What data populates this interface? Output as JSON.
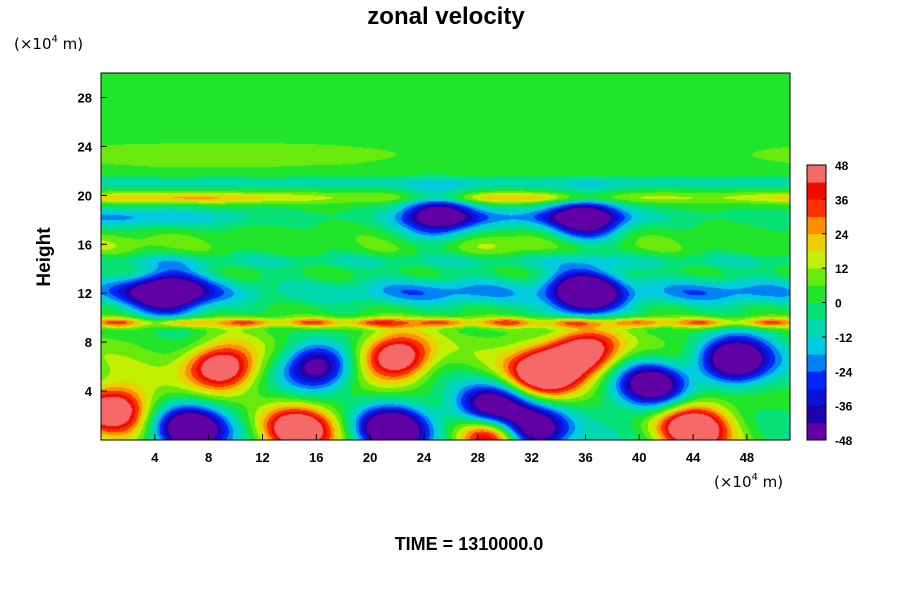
{
  "chart_data": {
    "type": "heatmap",
    "title": "zonal velocity",
    "ylabel": "Height",
    "y_unit": {
      "prefix": "(×10",
      "exp": "4",
      "suffix": " m)"
    },
    "x_unit": {
      "prefix": "(×10",
      "exp": "4",
      "suffix": " m)"
    },
    "footer": "TIME = 1310000.0",
    "xlim": [
      0,
      51.2
    ],
    "ylim": [
      0,
      30
    ],
    "x_ticks": [
      4,
      8,
      12,
      16,
      20,
      24,
      28,
      32,
      36,
      40,
      44,
      48
    ],
    "y_ticks": [
      4,
      8,
      12,
      16,
      20,
      24,
      28
    ],
    "colorbar": {
      "range": [
        -48,
        48
      ],
      "levels": [
        -48,
        -42,
        -36,
        -30,
        -24,
        -18,
        -12,
        -6,
        0,
        6,
        12,
        18,
        24,
        30,
        36,
        42,
        48
      ],
      "tick_labels": [
        48,
        36,
        24,
        12,
        0,
        -12,
        -24,
        -36,
        -48
      ]
    },
    "features": [
      {
        "x": 9,
        "y": 6,
        "value": 48
      },
      {
        "x": 22,
        "y": 6.8,
        "value": 48
      },
      {
        "x": 33,
        "y": 5.5,
        "value": 48
      },
      {
        "x": 36,
        "y": 7.2,
        "value": 46
      },
      {
        "x": 14.5,
        "y": 0.8,
        "value": 44
      },
      {
        "x": 44,
        "y": 1,
        "value": 44
      },
      {
        "x": 0.8,
        "y": 2.5,
        "value": 42
      },
      {
        "x": 29,
        "y": 0.4,
        "value": 46
      },
      {
        "x": 16,
        "y": 6,
        "value": -40
      },
      {
        "x": 6.5,
        "y": 0.8,
        "value": -48
      },
      {
        "x": 21.5,
        "y": 0.8,
        "value": -48
      },
      {
        "x": 32,
        "y": 0.8,
        "value": -48
      },
      {
        "x": 29,
        "y": 2.6,
        "value": -46
      },
      {
        "x": 47,
        "y": 6.5,
        "value": -48
      },
      {
        "x": 41,
        "y": 4.5,
        "value": -40
      },
      {
        "x": 36,
        "y": 12,
        "value": -46
      },
      {
        "x": 5,
        "y": 12,
        "value": -36
      },
      {
        "x": 36,
        "y": 18,
        "value": -34
      },
      {
        "x": 25,
        "y": 18.3,
        "value": -32
      }
    ]
  }
}
